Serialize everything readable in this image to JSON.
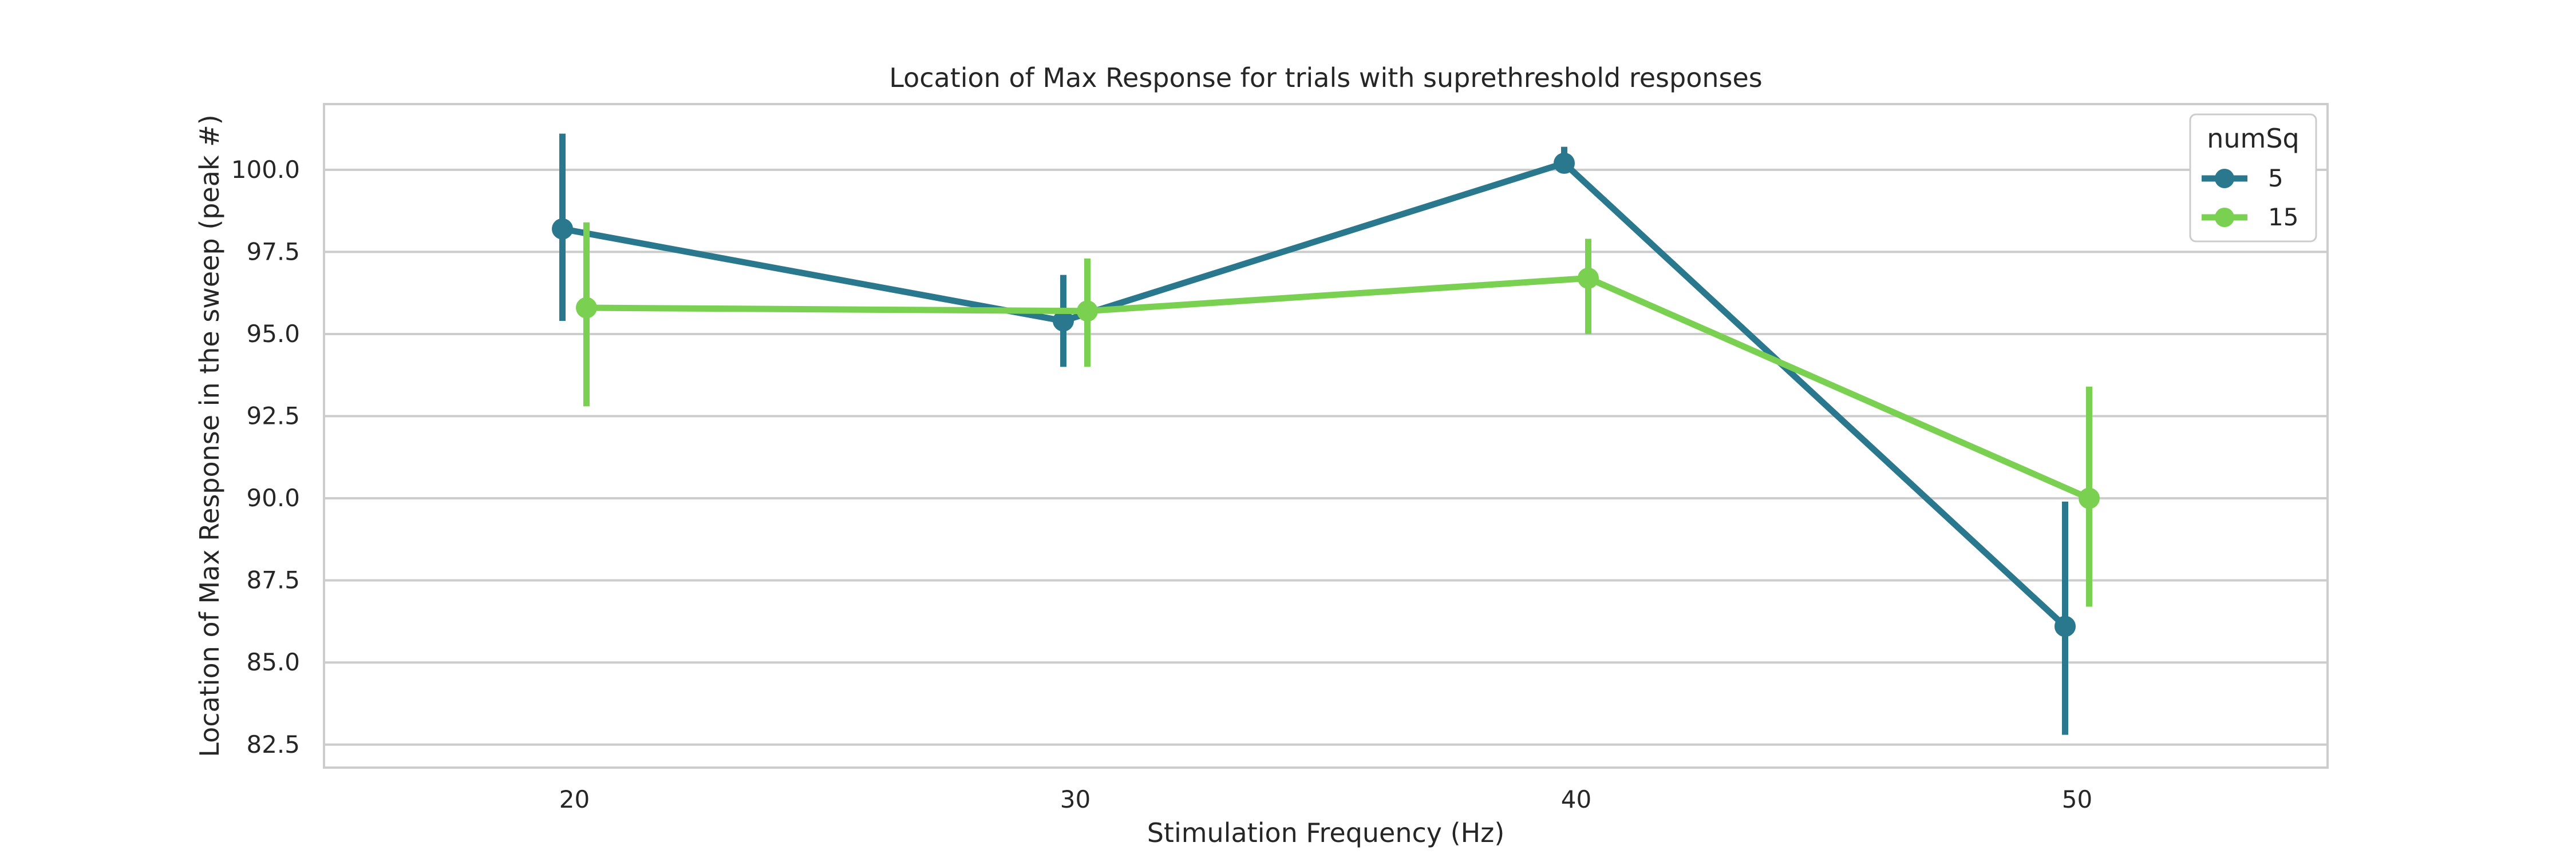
{
  "chart_data": {
    "type": "line",
    "title": "Location of Max Response for trials with suprethreshold responses",
    "xlabel": "Stimulation Frequency (Hz)",
    "ylabel": "Location of Max Response in the sweep (peak #)",
    "categories": [
      "20",
      "30",
      "40",
      "50"
    ],
    "ylim": [
      81.8,
      102.0
    ],
    "yticks": [
      "82.5",
      "85.0",
      "87.5",
      "90.0",
      "92.5",
      "95.0",
      "97.5",
      "100.0"
    ],
    "grid": true,
    "legend": {
      "title": "numSq",
      "position": "top-right"
    },
    "series": [
      {
        "name": "5",
        "color": "#2a788e",
        "values": [
          98.2,
          95.4,
          100.2,
          86.1
        ],
        "ci_low": [
          95.4,
          94.0,
          99.9,
          82.8
        ],
        "ci_high": [
          101.1,
          96.8,
          100.7,
          89.9
        ]
      },
      {
        "name": "15",
        "color": "#7ad151",
        "values": [
          95.8,
          95.7,
          96.7,
          90.0
        ],
        "ci_low": [
          92.8,
          94.0,
          95.0,
          86.7
        ],
        "ci_high": [
          98.4,
          97.3,
          97.9,
          93.4
        ]
      }
    ]
  }
}
